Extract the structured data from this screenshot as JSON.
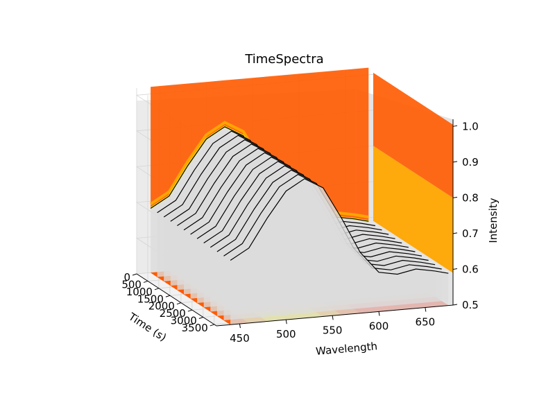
{
  "chart_data": {
    "type": "surface3d",
    "title": "TimeSpectra",
    "xlabel": "Wavelength",
    "ylabel": "Time (s)",
    "zlabel": "Intensity",
    "xticks": [
      "450",
      "500",
      "550",
      "600",
      "650"
    ],
    "yticks": [
      "0",
      "500",
      "1000",
      "1500",
      "2000",
      "2500",
      "3000",
      "3500"
    ],
    "zticks": [
      "0.5",
      "0.6",
      "0.7",
      "0.8",
      "0.9",
      "1.0"
    ],
    "xlim": [
      425,
      680
    ],
    "ylim": [
      0,
      3600
    ],
    "zlim": [
      0.5,
      1.02
    ],
    "grid": true,
    "colormap": "autumn",
    "colors": {
      "red": "#ff2200",
      "orange_red": "#ff5a00",
      "orange": "#ffa500",
      "yellow": "#ffee00",
      "wall": "#ebebeb",
      "wall_grid": "#d4d4d4",
      "curve_fill": "#dcdcdc",
      "line": "#000000"
    },
    "x": [
      440,
      460,
      480,
      500,
      520,
      540,
      560,
      580,
      600,
      620,
      640,
      660,
      675
    ],
    "y_times": [
      0,
      300,
      600,
      900,
      1200,
      1500,
      1800,
      2100,
      2400,
      2700,
      3000,
      3300,
      3600
    ],
    "series": [
      {
        "values": [
          0.68,
          0.71,
          0.79,
          0.86,
          0.89,
          0.86,
          0.77,
          0.67,
          0.61,
          0.6,
          0.61,
          0.6,
          0.59
        ]
      },
      {
        "values": [
          0.68,
          0.71,
          0.79,
          0.86,
          0.89,
          0.86,
          0.77,
          0.67,
          0.61,
          0.6,
          0.61,
          0.6,
          0.59
        ]
      },
      {
        "values": [
          0.68,
          0.71,
          0.79,
          0.86,
          0.89,
          0.86,
          0.77,
          0.67,
          0.61,
          0.6,
          0.61,
          0.6,
          0.59
        ]
      },
      {
        "values": [
          0.68,
          0.71,
          0.79,
          0.86,
          0.89,
          0.86,
          0.77,
          0.67,
          0.61,
          0.6,
          0.61,
          0.6,
          0.59
        ]
      },
      {
        "values": [
          0.68,
          0.71,
          0.79,
          0.86,
          0.89,
          0.86,
          0.77,
          0.67,
          0.61,
          0.6,
          0.61,
          0.6,
          0.59
        ]
      },
      {
        "values": [
          0.68,
          0.71,
          0.79,
          0.86,
          0.89,
          0.86,
          0.77,
          0.67,
          0.61,
          0.6,
          0.61,
          0.6,
          0.59
        ]
      },
      {
        "values": [
          0.68,
          0.71,
          0.79,
          0.86,
          0.89,
          0.86,
          0.77,
          0.67,
          0.61,
          0.6,
          0.61,
          0.6,
          0.59
        ]
      },
      {
        "values": [
          0.68,
          0.71,
          0.79,
          0.86,
          0.89,
          0.86,
          0.77,
          0.67,
          0.61,
          0.6,
          0.61,
          0.6,
          0.59
        ]
      },
      {
        "values": [
          0.68,
          0.71,
          0.79,
          0.86,
          0.89,
          0.86,
          0.77,
          0.67,
          0.61,
          0.6,
          0.61,
          0.6,
          0.59
        ]
      },
      {
        "values": [
          0.68,
          0.71,
          0.79,
          0.86,
          0.89,
          0.86,
          0.77,
          0.67,
          0.61,
          0.6,
          0.61,
          0.6,
          0.59
        ]
      },
      {
        "values": [
          0.68,
          0.71,
          0.79,
          0.86,
          0.89,
          0.86,
          0.77,
          0.67,
          0.61,
          0.6,
          0.61,
          0.6,
          0.59
        ]
      },
      {
        "values": [
          0.68,
          0.71,
          0.79,
          0.86,
          0.89,
          0.86,
          0.77,
          0.67,
          0.61,
          0.6,
          0.61,
          0.6,
          0.59
        ]
      },
      {
        "values": [
          0.68,
          0.71,
          0.79,
          0.86,
          0.89,
          0.86,
          0.77,
          0.67,
          0.61,
          0.6,
          0.61,
          0.6,
          0.59
        ]
      }
    ]
  }
}
